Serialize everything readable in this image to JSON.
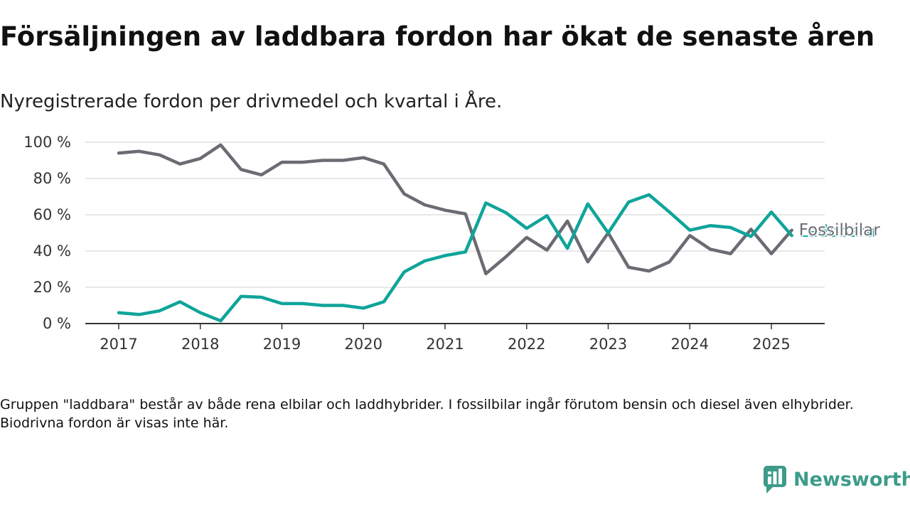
{
  "title": "Försäljningen av laddbara fordon har ökat de senaste åren",
  "subtitle": "Nyregistrerade fordon per drivmedel och kvartal i Åre.",
  "note": "Gruppen \"laddbara\" består av både rena elbilar och laddhybrider. I fossilbilar ingår förutom bensin och diesel även elhybrider. Biodrivna fordon är visas inte här.",
  "brand": {
    "name": "Newsworthy",
    "icon": "newsworthy-logo-icon",
    "color": "#3d9b8a"
  },
  "chart_data": {
    "type": "line",
    "title": "Försäljningen av laddbara fordon har ökat de senaste åren",
    "subtitle": "Nyregistrerade fordon per drivmedel och kvartal i Åre.",
    "xlabel": "",
    "ylabel": "",
    "x_ticks": [
      "2017",
      "2018",
      "2019",
      "2020",
      "2021",
      "2022",
      "2023",
      "2024",
      "2025"
    ],
    "y_ticks": [
      "0 %",
      "20 %",
      "40 %",
      "60 %",
      "80 %",
      "100 %"
    ],
    "ylim": [
      0,
      100
    ],
    "xlim": [
      2016.6,
      2025.67
    ],
    "grid": true,
    "legend": "direct labels at line ends (right)",
    "x": [
      2017.0,
      2017.25,
      2017.5,
      2017.75,
      2018.0,
      2018.25,
      2018.5,
      2018.75,
      2019.0,
      2019.25,
      2019.5,
      2019.75,
      2020.0,
      2020.25,
      2020.5,
      2020.75,
      2021.0,
      2021.25,
      2021.5,
      2021.75,
      2022.0,
      2022.25,
      2022.5,
      2022.75,
      2023.0,
      2023.25,
      2023.5,
      2023.75,
      2024.0,
      2024.25,
      2024.5,
      2024.75,
      2025.0,
      2025.25
    ],
    "series": [
      {
        "name": "Fossilbilar",
        "color": "#6b6b73",
        "values": [
          94,
          95,
          93,
          88,
          91,
          98.5,
          85,
          82,
          89,
          89,
          90,
          90,
          91.5,
          88,
          71.5,
          65.5,
          62.5,
          60.5,
          27.5,
          37,
          47.5,
          40.5,
          56.5,
          34,
          50,
          31,
          29,
          34,
          48.5,
          41,
          38.5,
          52,
          38.5,
          51.5
        ]
      },
      {
        "name": "Laddbara",
        "color": "#0fa49a",
        "values": [
          6,
          5,
          7,
          12,
          6,
          1.5,
          15,
          14.5,
          11,
          11,
          10,
          10,
          8.5,
          12,
          28.5,
          34.5,
          37.5,
          39.5,
          66.5,
          61,
          52.5,
          59.5,
          41.5,
          66,
          50,
          67,
          71,
          61.5,
          51.5,
          54,
          53,
          48,
          61.5,
          48.5
        ]
      }
    ]
  }
}
